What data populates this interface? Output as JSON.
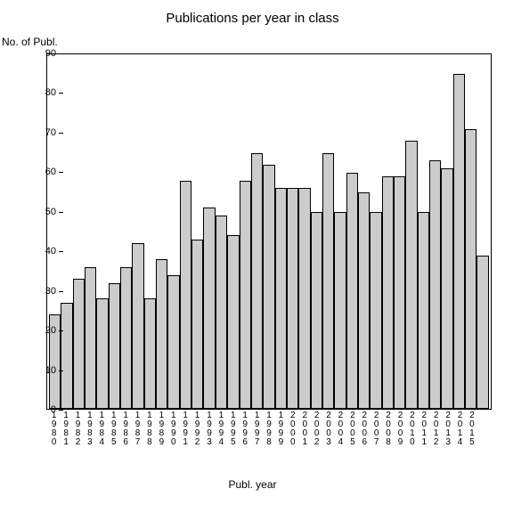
{
  "chart": {
    "type": "bar",
    "title": "Publications per year in class",
    "title_fontsize": 15,
    "ylabel": "No. of Publ.",
    "xlabel": "Publ. year",
    "label_fontsize": 12,
    "ylim": [
      0,
      90
    ],
    "ytick_step": 10,
    "yticks": [
      0,
      10,
      20,
      30,
      40,
      50,
      60,
      70,
      80,
      90
    ],
    "categories": [
      "1980",
      "1981",
      "1982",
      "1983",
      "1984",
      "1985",
      "1986",
      "1987",
      "1988",
      "1989",
      "1990",
      "1991",
      "1992",
      "1993",
      "1994",
      "1995",
      "1996",
      "1997",
      "1998",
      "1999",
      "2000",
      "2001",
      "2002",
      "2003",
      "2004",
      "2005",
      "2006",
      "2007",
      "2008",
      "2009",
      "2010",
      "2011",
      "2012",
      "2013",
      "2014",
      "2015"
    ],
    "values": [
      24,
      27,
      33,
      36,
      28,
      32,
      36,
      42,
      28,
      38,
      34,
      58,
      43,
      51,
      49,
      44,
      58,
      65,
      62,
      56,
      56,
      56,
      50,
      65,
      50,
      60,
      55,
      50,
      59,
      59,
      68,
      50,
      63,
      61,
      85,
      71,
      39
    ],
    "extra_categories": [
      ""
    ],
    "bar_fill": "#cccccc",
    "bar_border": "#000000",
    "background_color": "#ffffff",
    "axis_color": "#000000",
    "tick_fontsize": 11,
    "xtick_fontsize": 10,
    "bar_width_ratio": 1.0
  }
}
